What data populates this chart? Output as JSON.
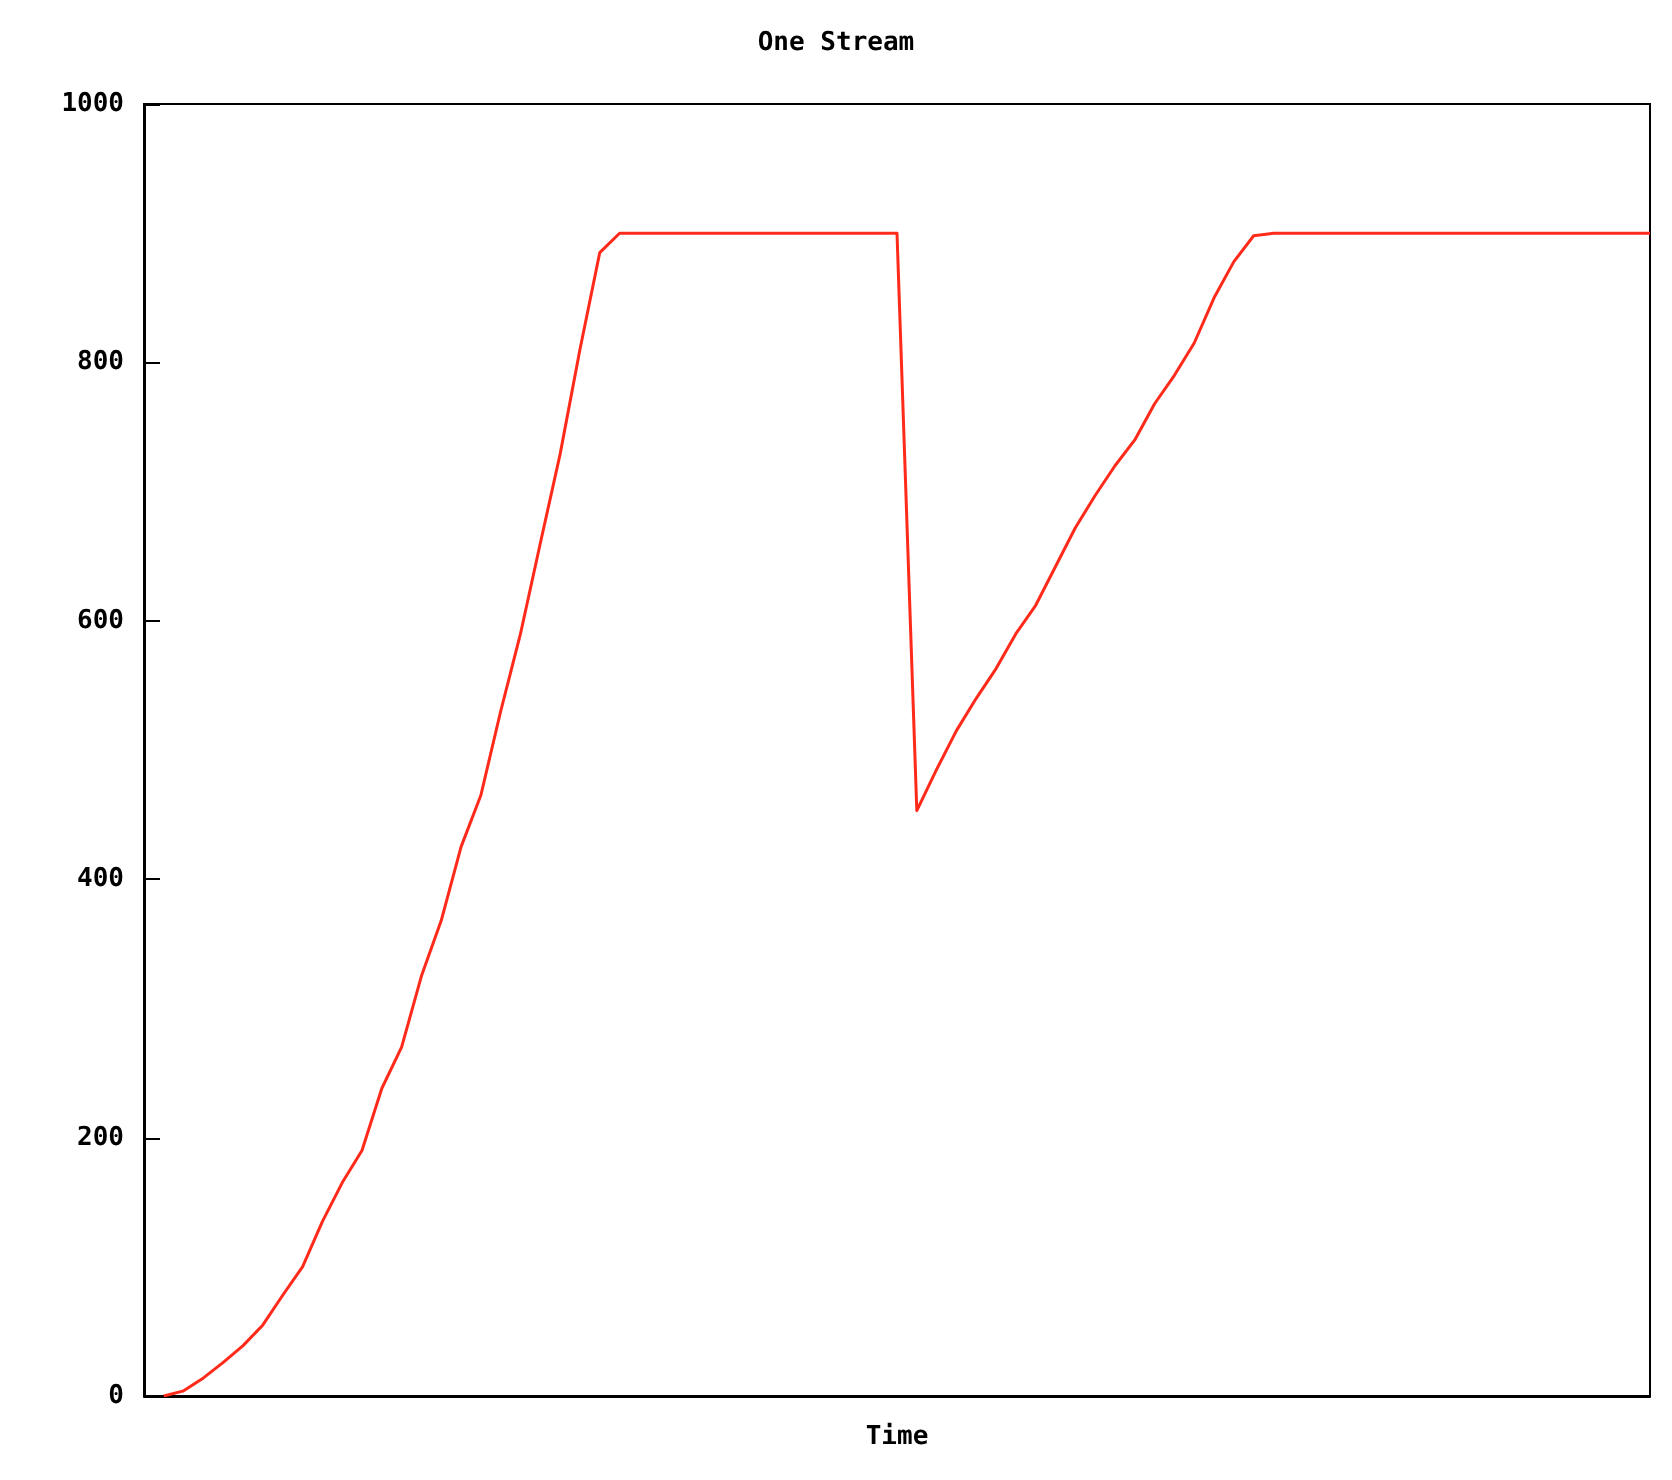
{
  "chart_data": {
    "type": "line",
    "title": "One Stream",
    "xlabel": "Time",
    "categories": [
      null,
      null,
      null,
      null,
      null,
      null,
      null,
      null,
      null,
      null,
      null,
      null,
      null,
      null,
      null,
      null,
      null,
      null,
      null,
      null,
      null,
      null,
      null,
      null,
      null,
      null,
      null,
      null,
      null,
      null,
      null,
      null,
      null,
      null,
      null,
      null,
      null,
      null,
      null,
      null,
      null,
      null,
      null,
      null,
      null,
      null,
      null,
      null,
      null,
      null,
      null,
      null,
      null,
      null,
      null,
      null,
      null,
      null,
      null,
      null,
      null,
      null,
      null,
      null,
      null,
      null,
      null,
      null,
      null,
      null,
      null,
      null,
      null,
      null,
      null,
      null,
      null
    ],
    "series": [
      {
        "color": "#ff2a1a",
        "values": [
          null,
          0,
          4,
          14,
          26,
          39,
          55,
          78,
          100,
          135,
          165,
          190,
          238,
          270,
          325,
          368,
          425,
          465,
          530,
          590,
          660,
          729,
          810,
          885,
          900,
          900,
          900,
          900,
          900,
          900,
          900,
          900,
          900,
          900,
          900,
          900,
          900,
          900,
          900,
          453,
          485,
          515,
          540,
          563,
          590,
          612,
          642,
          672,
          697,
          720,
          740,
          768,
          790,
          815,
          850,
          878,
          898,
          900,
          900,
          900,
          900,
          900,
          900,
          900,
          900,
          900,
          900,
          900,
          900,
          900,
          900,
          900,
          900,
          900,
          900,
          900,
          900
        ]
      }
    ],
    "ylim": [
      0,
      1000
    ],
    "yticks": [
      0,
      200,
      400,
      600,
      800,
      1000
    ],
    "grid": false,
    "marker": "none",
    "line_style": "solid",
    "tick_labels": "y"
  }
}
